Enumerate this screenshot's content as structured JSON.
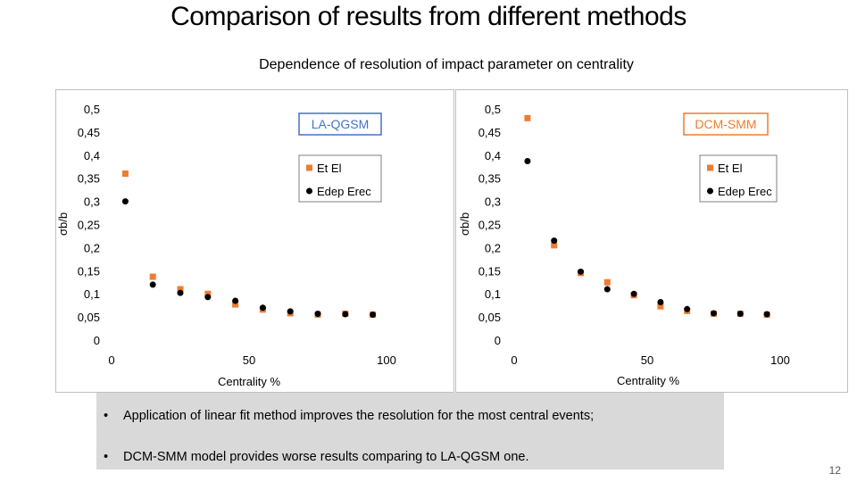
{
  "slide": {
    "title": "Comparison of results from different methods",
    "subtitle": "Dependence of resolution of impact parameter on centrality",
    "bullets": [
      "Application of linear fit method improves the resolution for the most central events;",
      "DCM-SMM model provides worse results comparing to LA-QGSM one."
    ],
    "page_number": "12"
  },
  "colors": {
    "et_el": "#ED7D31",
    "edep_erec": "#000000",
    "la_box": "#4472C4",
    "dcm_box": "#ED7D31"
  },
  "chart_data": [
    {
      "type": "scatter",
      "model_label": "LA-QGSM",
      "xlabel": "Centrality %",
      "ylabel": "σb/b",
      "xlim": [
        0,
        100
      ],
      "ylim": [
        0,
        0.5
      ],
      "x_ticks": [
        "0",
        "50",
        "100"
      ],
      "y_ticks": [
        "0",
        "0,05",
        "0,1",
        "0,15",
        "0,2",
        "0,25",
        "0,3",
        "0,35",
        "0,4",
        "0,45",
        "0,5"
      ],
      "legend_position": "right",
      "series": [
        {
          "name": "Et El",
          "marker": "square",
          "x": [
            5,
            15,
            25,
            35,
            45,
            55,
            65,
            75,
            85,
            95
          ],
          "y": [
            0.36,
            0.137,
            0.11,
            0.1,
            0.077,
            0.066,
            0.058,
            0.055,
            0.057,
            0.055
          ]
        },
        {
          "name": "Edep Erec",
          "marker": "circle",
          "x": [
            5,
            15,
            25,
            35,
            45,
            55,
            65,
            75,
            85,
            95
          ],
          "y": [
            0.3,
            0.12,
            0.102,
            0.093,
            0.085,
            0.07,
            0.062,
            0.057,
            0.056,
            0.055
          ]
        }
      ]
    },
    {
      "type": "scatter",
      "model_label": "DCM-SMM",
      "xlabel": "Centrality %",
      "ylabel": "σb/b",
      "xlim": [
        0,
        100
      ],
      "ylim": [
        0,
        0.5
      ],
      "x_ticks": [
        "0",
        "50",
        "100"
      ],
      "y_ticks": [
        "0",
        "0,05",
        "0,1",
        "0,15",
        "0,2",
        "0,25",
        "0,3",
        "0,35",
        "0,4",
        "0,45",
        "0,5"
      ],
      "legend_position": "right",
      "series": [
        {
          "name": "Et El",
          "marker": "square",
          "x": [
            5,
            15,
            25,
            35,
            45,
            55,
            65,
            75,
            85,
            95
          ],
          "y": [
            0.48,
            0.205,
            0.145,
            0.125,
            0.097,
            0.073,
            0.063,
            0.057,
            0.057,
            0.055
          ]
        },
        {
          "name": "Edep Erec",
          "marker": "circle",
          "x": [
            5,
            15,
            25,
            35,
            45,
            55,
            65,
            75,
            85,
            95
          ],
          "y": [
            0.387,
            0.215,
            0.148,
            0.11,
            0.1,
            0.082,
            0.067,
            0.058,
            0.057,
            0.056
          ]
        }
      ]
    }
  ]
}
